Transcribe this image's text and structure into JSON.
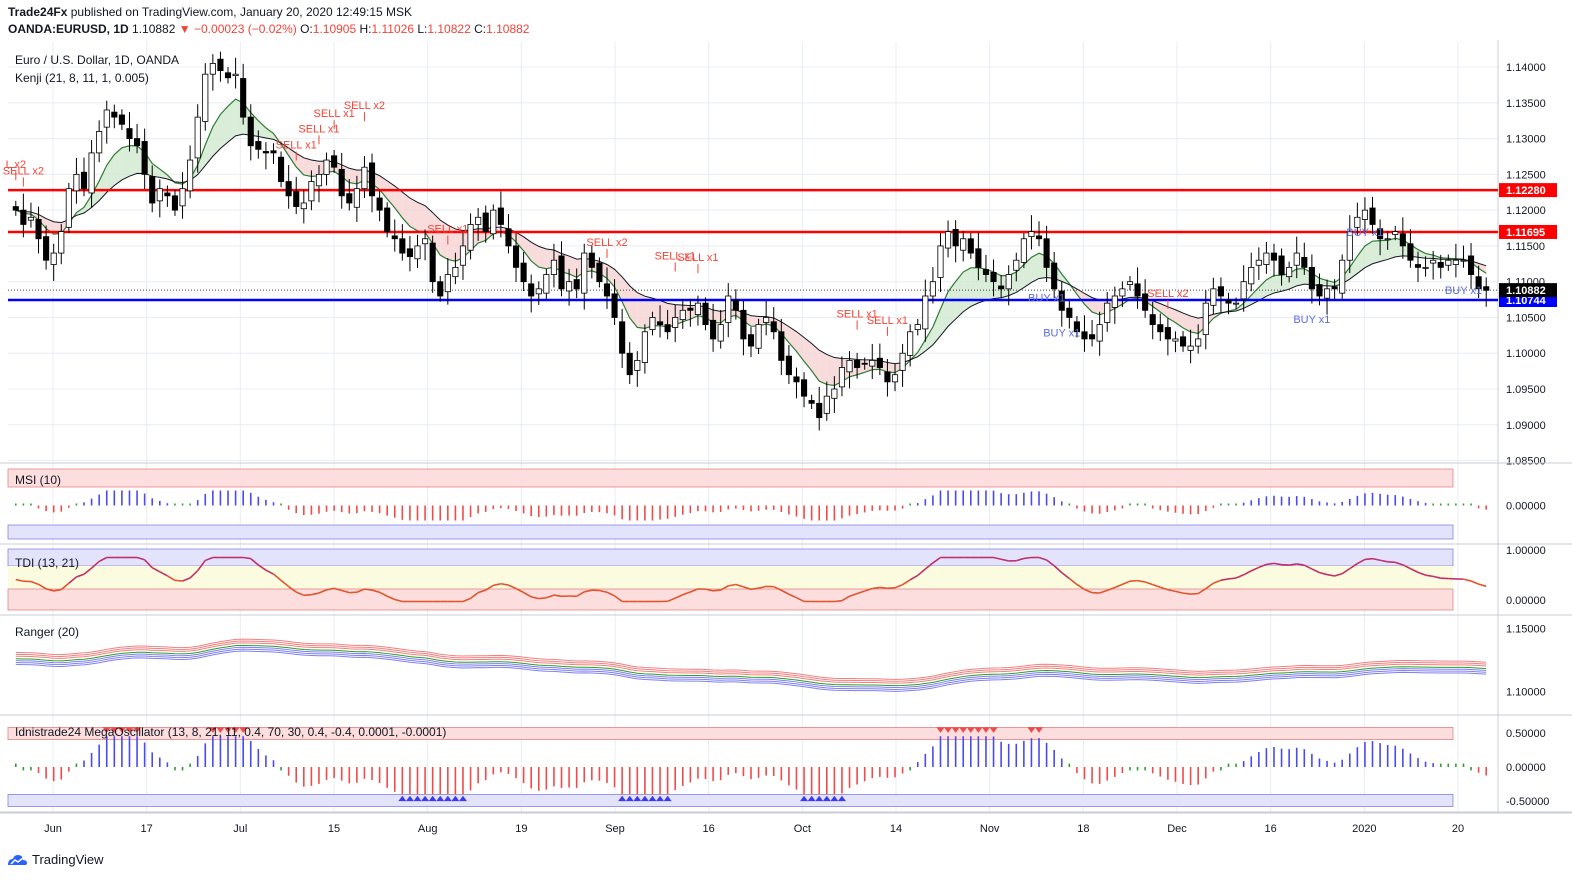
{
  "header": {
    "publisher": "Trade24Fx",
    "published_text": "published on TradingView.com, January 20, 2020 12:49:15 MSK",
    "symbol": "OANDA:EURUSD, 1D",
    "last": "1.10882",
    "change": "−0.00023 (−0.02%)",
    "o_label": "O:",
    "o_value": "1.10905",
    "h_label": "H:",
    "h_value": "1.11026",
    "l_label": "L:",
    "l_value": "1.10822",
    "c_label": "C:",
    "c_value": "1.10882"
  },
  "footer": {
    "brand": "TradingView"
  },
  "colors": {
    "up": "#ffffff",
    "down": "#000000",
    "red_line": "#ff0000",
    "blue_line": "#0000ff",
    "sell": "#f44336",
    "buy": "#5b6ee1",
    "grid": "#e8edf3"
  },
  "chart_data": [
    {
      "type": "candlestick",
      "title": "Euro / U.S. Dollar, 1D, OANDA",
      "subtitle": "Kenji (21, 8, 11, 1, 0.005)",
      "x_ticks": [
        "Jun",
        "17",
        "Jul",
        "15",
        "Aug",
        "19",
        "Sep",
        "16",
        "Oct",
        "14",
        "Nov",
        "18",
        "Dec",
        "16",
        "2020",
        "20"
      ],
      "ylim": [
        1.0848,
        1.1435
      ],
      "y_ticks": [
        "1.14000",
        "1.13500",
        "1.13000",
        "1.12500",
        "1.12000",
        "1.11500",
        "1.11000",
        "1.10500",
        "1.10000",
        "1.09500",
        "1.09000",
        "1.08500"
      ],
      "horizontal_lines": [
        {
          "value": 1.1228,
          "label": "1.12280",
          "color": "#ff0000"
        },
        {
          "value": 1.11695,
          "label": "1.11695",
          "color": "#ff0000"
        },
        {
          "value": 1.10744,
          "label": "1.10744",
          "color": "#0000ff"
        }
      ],
      "last_price": {
        "value": 1.10882,
        "label": "1.10882"
      },
      "closes": [
        1.12,
        1.118,
        1.119,
        1.116,
        1.113,
        1.114,
        1.117,
        1.123,
        1.125,
        1.123,
        1.128,
        1.131,
        1.134,
        1.133,
        1.132,
        1.13,
        1.129,
        1.125,
        1.121,
        1.123,
        1.122,
        1.12,
        1.123,
        1.127,
        1.133,
        1.139,
        1.1405,
        1.1395,
        1.1385,
        1.139,
        1.133,
        1.129,
        1.1285,
        1.128,
        1.128,
        1.124,
        1.122,
        1.1205,
        1.121,
        1.124,
        1.125,
        1.127,
        1.126,
        1.122,
        1.121,
        1.123,
        1.126,
        1.122,
        1.12,
        1.117,
        1.116,
        1.114,
        1.1135,
        1.115,
        1.116,
        1.11,
        1.108,
        1.111,
        1.112,
        1.115,
        1.118,
        1.119,
        1.117,
        1.12,
        1.118,
        1.115,
        1.112,
        1.11,
        1.108,
        1.109,
        1.111,
        1.113,
        1.109,
        1.11,
        1.109,
        1.114,
        1.112,
        1.11,
        1.108,
        1.105,
        1.1,
        1.097,
        1.099,
        1.103,
        1.105,
        1.104,
        1.103,
        1.105,
        1.106,
        1.106,
        1.107,
        1.104,
        1.102,
        1.104,
        1.108,
        1.106,
        1.102,
        1.101,
        1.104,
        1.105,
        1.103,
        1.099,
        1.097,
        1.096,
        1.094,
        1.093,
        1.091,
        1.094,
        1.095,
        1.098,
        1.099,
        1.098,
        1.0985,
        1.099,
        1.098,
        1.096,
        1.097,
        1.1,
        1.103,
        1.104,
        1.108,
        1.11,
        1.115,
        1.117,
        1.115,
        1.116,
        1.114,
        1.112,
        1.111,
        1.11,
        1.109,
        1.111,
        1.113,
        1.116,
        1.117,
        1.116,
        1.112,
        1.109,
        1.106,
        1.105,
        1.103,
        1.102,
        1.102,
        1.104,
        1.107,
        1.108,
        1.109,
        1.11,
        1.108,
        1.106,
        1.104,
        1.103,
        1.102,
        1.102,
        1.101,
        1.101,
        1.102,
        1.107,
        1.109,
        1.108,
        1.107,
        1.107,
        1.11,
        1.112,
        1.113,
        1.114,
        1.113,
        1.111,
        1.112,
        1.114,
        1.112,
        1.109,
        1.108,
        1.109,
        1.109,
        1.113,
        1.117,
        1.119,
        1.12,
        1.118,
        1.116,
        1.116,
        1.117,
        1.115,
        1.113,
        1.112,
        1.112,
        1.113,
        1.112,
        1.113,
        1.113,
        1.113,
        1.111,
        1.109,
        1.1088
      ]
    },
    {
      "type": "bar",
      "title": "MSI (10)",
      "y_ticks": [
        "0.00000"
      ]
    },
    {
      "type": "line",
      "title": "TDI (13, 21)",
      "y_ticks": [
        "1.00000",
        "0.00000"
      ]
    },
    {
      "type": "line",
      "title": "Ranger (20)",
      "y_ticks": [
        "1.15000",
        "1.10000"
      ]
    },
    {
      "type": "bar",
      "title": "Idnistrade24 MegaOscillator (13, 8, 21, 11, 0.4, 70, 30, 0.4, -0.4, 0.0001, -0.0001)",
      "y_ticks": [
        "0.50000",
        "0.00000",
        "-0.50000"
      ]
    }
  ],
  "signals": [
    {
      "text": "L x2",
      "bar": 0,
      "type": "sell"
    },
    {
      "text": "SELL x2",
      "bar": 1,
      "type": "sell"
    },
    {
      "text": "SELL x1",
      "bar": 37,
      "type": "sell"
    },
    {
      "text": "SELL x1",
      "bar": 40,
      "type": "sell"
    },
    {
      "text": "SELL x1",
      "bar": 42,
      "type": "sell"
    },
    {
      "text": "SELL x2",
      "bar": 46,
      "type": "sell"
    },
    {
      "text": "SELL x1",
      "bar": 57,
      "type": "sell"
    },
    {
      "text": "SELL x2",
      "bar": 78,
      "type": "sell"
    },
    {
      "text": "SELL x1",
      "bar": 87,
      "type": "sell"
    },
    {
      "text": "SELL x1",
      "bar": 90,
      "type": "sell"
    },
    {
      "text": "SELL x1",
      "bar": 111,
      "type": "sell"
    },
    {
      "text": "SELL x1",
      "bar": 115,
      "type": "sell"
    },
    {
      "text": "SELL x2",
      "bar": 152,
      "type": "sell"
    },
    {
      "text": "BUY x1",
      "bar": 136,
      "type": "buy"
    },
    {
      "text": "BUY x1",
      "bar": 138,
      "type": "buy"
    },
    {
      "text": "BUY x1",
      "bar": 171,
      "type": "buy"
    },
    {
      "text": "BUY x1",
      "bar": 178,
      "type": "buy"
    },
    {
      "text": "BUY x1",
      "bar": 191,
      "type": "buy"
    }
  ]
}
